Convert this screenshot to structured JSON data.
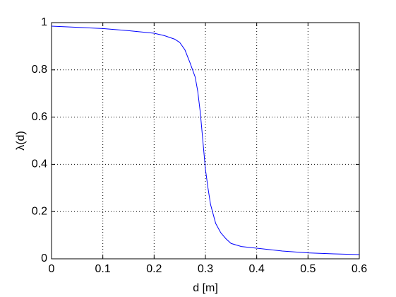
{
  "chart_data": {
    "type": "line",
    "x_label": "d [m]",
    "y_label": "λ(d)",
    "x": [
      0,
      0.05,
      0.1,
      0.15,
      0.2,
      0.22,
      0.24,
      0.25,
      0.26,
      0.27,
      0.28,
      0.285,
      0.29,
      0.295,
      0.3,
      0.305,
      0.31,
      0.32,
      0.33,
      0.34,
      0.35,
      0.37,
      0.4,
      0.45,
      0.5,
      0.55,
      0.6
    ],
    "series": [
      {
        "color": "#0000ff",
        "values": [
          0.985,
          0.98,
          0.975,
          0.966,
          0.955,
          0.945,
          0.93,
          0.916,
          0.885,
          0.83,
          0.77,
          0.71,
          0.62,
          0.5,
          0.38,
          0.3,
          0.23,
          0.15,
          0.11,
          0.085,
          0.065,
          0.052,
          0.045,
          0.033,
          0.025,
          0.021,
          0.018
        ]
      }
    ],
    "xlim": [
      0,
      0.6
    ],
    "ylim": [
      0,
      1
    ],
    "xticks": [
      0,
      0.1,
      0.2,
      0.3,
      0.4,
      0.5,
      0.6
    ],
    "yticks": [
      0,
      0.2,
      0.4,
      0.6,
      0.8,
      1
    ],
    "grid": true
  }
}
